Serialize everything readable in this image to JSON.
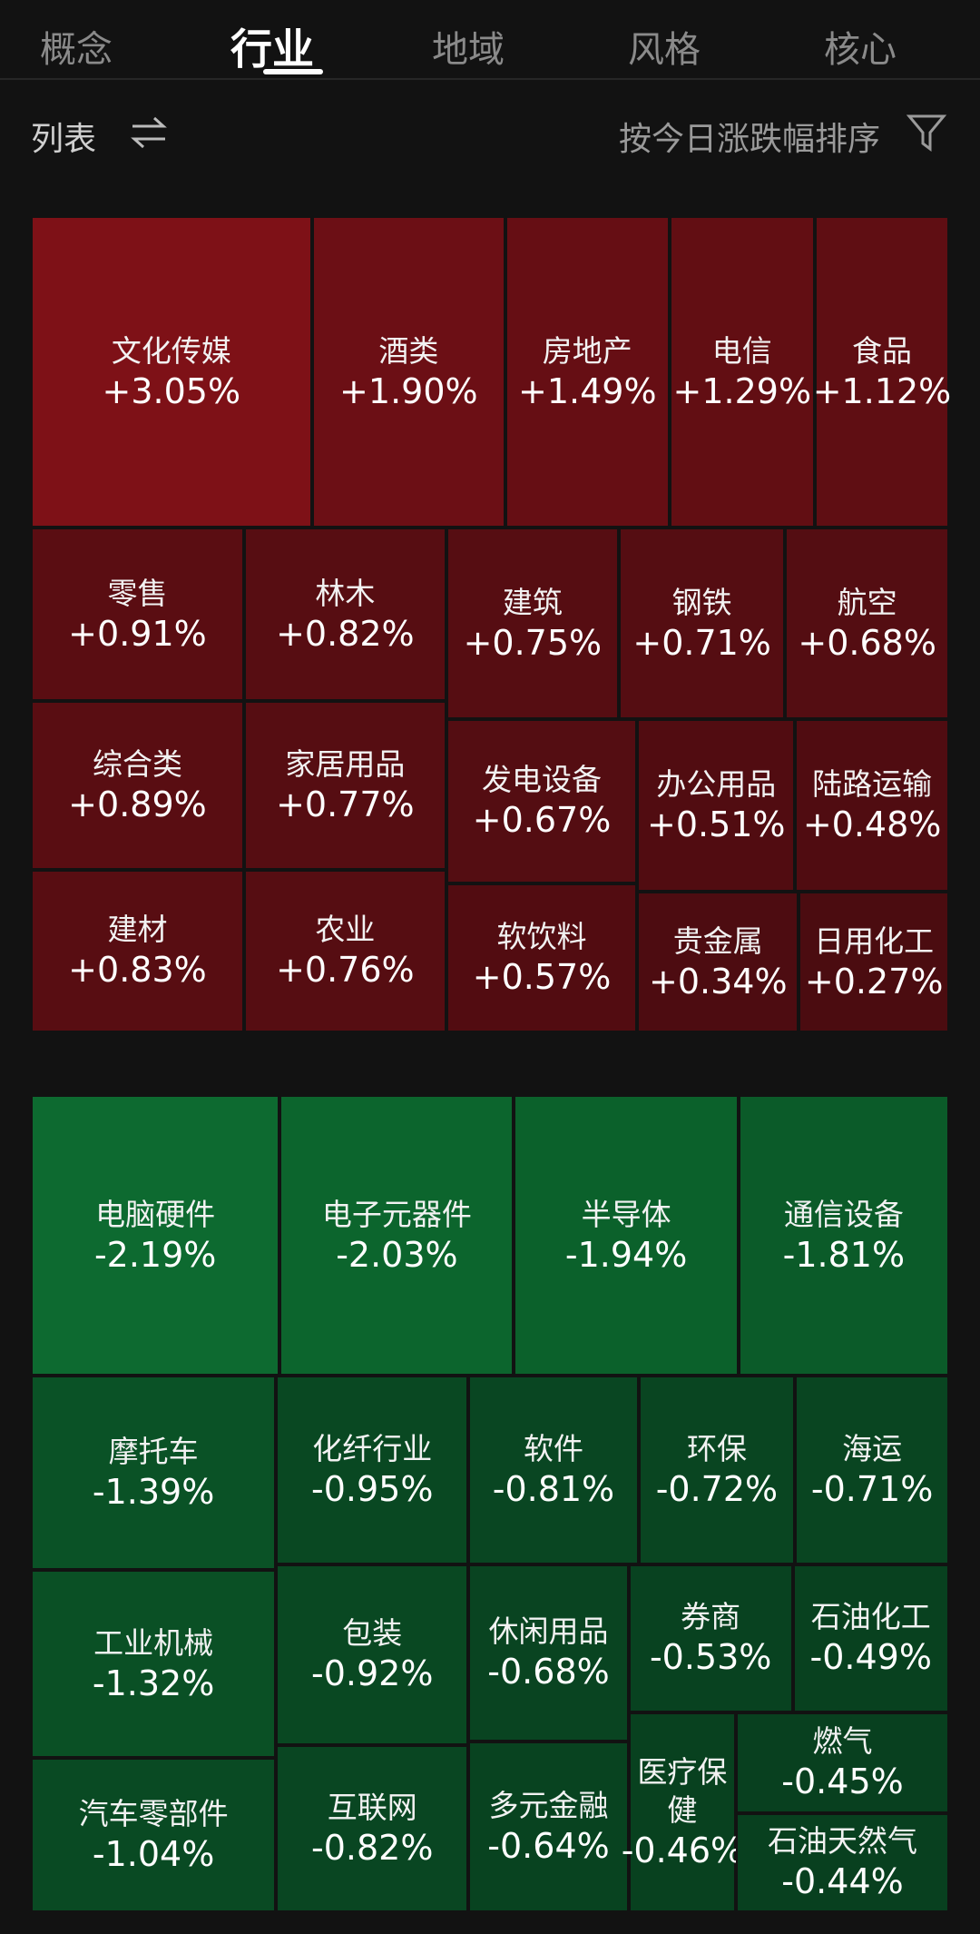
{
  "tabs": [
    "概念",
    "行业",
    "地域",
    "风格",
    "核心"
  ],
  "toolbar": {
    "view": "列表",
    "sort": "按今日涨跌幅排序"
  },
  "gainers": [
    {
      "name": "文化传媒",
      "change": "+3.05%"
    },
    {
      "name": "酒类",
      "change": "+1.90%"
    },
    {
      "name": "房地产",
      "change": "+1.49%"
    },
    {
      "name": "电信",
      "change": "+1.29%"
    },
    {
      "name": "食品",
      "change": "+1.12%"
    },
    {
      "name": "零售",
      "change": "+0.91%"
    },
    {
      "name": "林木",
      "change": "+0.82%"
    },
    {
      "name": "综合类",
      "change": "+0.89%"
    },
    {
      "name": "家居用品",
      "change": "+0.77%"
    },
    {
      "name": "建材",
      "change": "+0.83%"
    },
    {
      "name": "农业",
      "change": "+0.76%"
    },
    {
      "name": "建筑",
      "change": "+0.75%"
    },
    {
      "name": "钢铁",
      "change": "+0.71%"
    },
    {
      "name": "航空",
      "change": "+0.68%"
    },
    {
      "name": "发电设备",
      "change": "+0.67%"
    },
    {
      "name": "软饮料",
      "change": "+0.57%"
    },
    {
      "name": "办公用品",
      "change": "+0.51%"
    },
    {
      "name": "陆路运输",
      "change": "+0.48%"
    },
    {
      "name": "贵金属",
      "change": "+0.34%"
    },
    {
      "name": "日用化工",
      "change": "+0.27%"
    }
  ],
  "losers": [
    {
      "name": "电脑硬件",
      "change": "-2.19%"
    },
    {
      "name": "电子元器件",
      "change": "-2.03%"
    },
    {
      "name": "半导体",
      "change": "-1.94%"
    },
    {
      "name": "通信设备",
      "change": "-1.81%"
    },
    {
      "name": "摩托车",
      "change": "-1.39%"
    },
    {
      "name": "工业机械",
      "change": "-1.32%"
    },
    {
      "name": "汽车零部件",
      "change": "-1.04%"
    },
    {
      "name": "化纤行业",
      "change": "-0.95%"
    },
    {
      "name": "软件",
      "change": "-0.81%"
    },
    {
      "name": "环保",
      "change": "-0.72%"
    },
    {
      "name": "海运",
      "change": "-0.71%"
    },
    {
      "name": "包装",
      "change": "-0.92%"
    },
    {
      "name": "互联网",
      "change": "-0.82%"
    },
    {
      "name": "休闲用品",
      "change": "-0.68%"
    },
    {
      "name": "多元金融",
      "change": "-0.64%"
    },
    {
      "name": "券商",
      "change": "-0.53%"
    },
    {
      "name": "石油化工",
      "change": "-0.49%"
    },
    {
      "name": "医疗保健",
      "change": "-0.46%"
    },
    {
      "name": "燃气",
      "change": "-0.45%"
    },
    {
      "name": "石油天然气",
      "change": "-0.44%"
    }
  ]
}
